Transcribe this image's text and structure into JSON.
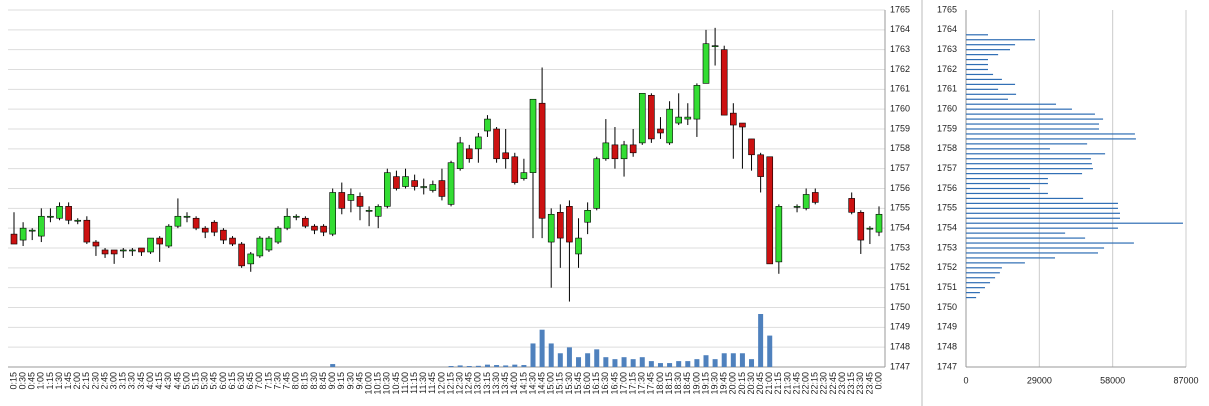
{
  "chart_data": [
    {
      "type": "candlestick",
      "x": [
        "0:15",
        "0:30",
        "0:45",
        "1:00",
        "1:15",
        "1:30",
        "1:45",
        "2:00",
        "2:15",
        "2:30",
        "2:45",
        "3:00",
        "3:15",
        "3:30",
        "3:45",
        "4:00",
        "4:15",
        "4:30",
        "4:45",
        "5:00",
        "5:15",
        "5:30",
        "5:45",
        "6:00",
        "6:15",
        "6:30",
        "6:45",
        "7:00",
        "7:15",
        "7:30",
        "7:45",
        "8:00",
        "8:15",
        "8:30",
        "8:45",
        "9:00",
        "9:15",
        "9:30",
        "9:45",
        "10:00",
        "10:15",
        "10:30",
        "10:45",
        "11:00",
        "11:15",
        "11:30",
        "11:45",
        "12:00",
        "12:15",
        "12:30",
        "12:45",
        "13:00",
        "13:15",
        "13:30",
        "13:45",
        "14:00",
        "14:15",
        "14:30",
        "14:45",
        "15:00",
        "15:15",
        "15:30",
        "15:45",
        "16:00",
        "16:15",
        "16:30",
        "16:45",
        "17:00",
        "17:15",
        "17:30",
        "17:45",
        "18:00",
        "18:15",
        "18:30",
        "18:45",
        "19:00",
        "19:15",
        "19:30",
        "19:45",
        "20:00",
        "20:15",
        "20:30",
        "20:45",
        "21:00",
        "21:15",
        "21:30",
        "21:45",
        "22:00",
        "22:15",
        "22:30",
        "22:45",
        "23:00",
        "23:15",
        "23:30",
        "23:45",
        "0:00"
      ],
      "open": [
        1753.7,
        1753.4,
        1753.9,
        1753.6,
        1754.6,
        1754.5,
        1755.1,
        1754.4,
        1754.4,
        1753.3,
        1752.9,
        1752.9,
        1752.9,
        1752.9,
        1753.0,
        1752.8,
        1753.5,
        1753.1,
        1754.1,
        1754.6,
        1754.5,
        1754.0,
        1754.3,
        1753.9,
        1753.5,
        1753.2,
        1752.2,
        1752.6,
        1752.9,
        1753.3,
        1754.0,
        1754.6,
        1754.5,
        1754.1,
        1754.1,
        1753.7,
        1755.8,
        1755.4,
        1755.6,
        1754.9,
        1754.6,
        1755.1,
        1756.6,
        1756.1,
        1756.4,
        1756.1,
        1755.9,
        1756.4,
        1755.2,
        1757.0,
        1758.0,
        1758.0,
        1758.9,
        1759.0,
        1757.8,
        1757.6,
        1756.5,
        1756.8,
        1760.3,
        1753.3,
        1754.8,
        1755.1,
        1752.7,
        1754.3,
        1755.0,
        1757.5,
        1758.2,
        1757.5,
        1758.2,
        1758.3,
        1760.7,
        1759.0,
        1758.3,
        1759.3,
        1759.5,
        1759.5,
        1761.3,
        1763.2,
        1763.0,
        1759.8,
        1759.3,
        1758.5,
        1757.7,
        1757.6,
        1752.3,
        null,
        1755.1,
        1755.0,
        1755.8,
        null,
        null,
        null,
        1755.5,
        1754.8,
        1754.0,
        1753.8
      ],
      "high": [
        1754.8,
        1754.3,
        1754.0,
        1755.0,
        1755.0,
        1755.3,
        1755.3,
        1754.5,
        1754.6,
        1753.4,
        1753.0,
        1752.9,
        1753.0,
        1753.0,
        1753.0,
        1753.5,
        1753.6,
        1754.2,
        1755.5,
        1754.8,
        1754.6,
        1754.1,
        1754.4,
        1754.0,
        1753.6,
        1753.3,
        1752.8,
        1753.6,
        1753.6,
        1754.1,
        1755.0,
        1754.7,
        1754.6,
        1754.2,
        1754.2,
        1756.0,
        1756.3,
        1756.0,
        1755.8,
        1755.1,
        1755.2,
        1757.0,
        1756.9,
        1757.0,
        1756.7,
        1756.5,
        1756.4,
        1757.0,
        1757.4,
        1758.6,
        1758.2,
        1758.8,
        1759.7,
        1759.1,
        1759.0,
        1757.8,
        1757.5,
        1760.5,
        1762.1,
        1755.0,
        1755.2,
        1755.4,
        1754.5,
        1755.3,
        1757.6,
        1759.5,
        1759.1,
        1758.4,
        1759.0,
        1760.8,
        1760.8,
        1759.6,
        1760.4,
        1760.8,
        1760.3,
        1761.3,
        1764.0,
        1764.1,
        1763.2,
        1760.3,
        1759.3,
        1758.5,
        1757.8,
        1757.6,
        1755.2,
        null,
        1755.2,
        1756.0,
        1756.0,
        null,
        null,
        null,
        1755.8,
        1754.9,
        1754.1,
        1755.1
      ],
      "low": [
        1753.2,
        1753.1,
        1753.4,
        1753.3,
        1754.3,
        1754.4,
        1754.2,
        1754.2,
        1753.2,
        1752.6,
        1752.5,
        1752.2,
        1752.5,
        1752.6,
        1752.6,
        1752.7,
        1752.3,
        1753.0,
        1754.0,
        1754.3,
        1753.9,
        1753.5,
        1753.6,
        1753.2,
        1753.1,
        1752.0,
        1751.8,
        1752.5,
        1752.8,
        1753.2,
        1753.9,
        1754.4,
        1754.0,
        1753.7,
        1753.6,
        1753.6,
        1754.7,
        1754.8,
        1754.4,
        1754.1,
        1754.0,
        1755.0,
        1755.9,
        1756.0,
        1755.9,
        1755.7,
        1755.8,
        1755.4,
        1755.1,
        1756.9,
        1757.3,
        1757.3,
        1758.6,
        1757.3,
        1757.0,
        1756.2,
        1756.4,
        1753.5,
        1753.5,
        1751.0,
        1752.0,
        1750.3,
        1752.0,
        1753.7,
        1754.9,
        1757.4,
        1757.0,
        1756.6,
        1757.6,
        1758.2,
        1758.3,
        1758.5,
        1758.2,
        1759.2,
        1759.2,
        1758.6,
        1761.3,
        1762.2,
        1759.7,
        1757.5,
        1757.0,
        1756.9,
        1755.8,
        1752.2,
        1751.7,
        null,
        1754.8,
        1754.9,
        1755.2,
        null,
        null,
        null,
        1754.7,
        1752.7,
        1753.2,
        1753.6
      ],
      "close": [
        1753.2,
        1754.0,
        1753.9,
        1754.6,
        1754.6,
        1755.1,
        1754.4,
        1754.4,
        1753.3,
        1753.1,
        1752.7,
        1752.7,
        1752.9,
        1752.9,
        1752.8,
        1753.5,
        1753.2,
        1754.1,
        1754.6,
        1754.6,
        1754.0,
        1753.8,
        1753.8,
        1753.4,
        1753.2,
        1752.1,
        1752.7,
        1753.5,
        1753.5,
        1754.0,
        1754.6,
        1754.6,
        1754.1,
        1753.9,
        1753.8,
        1755.8,
        1755.0,
        1755.7,
        1755.1,
        1754.9,
        1755.1,
        1756.8,
        1756.0,
        1756.6,
        1756.1,
        1756.1,
        1756.2,
        1755.6,
        1757.3,
        1758.3,
        1757.5,
        1758.6,
        1759.5,
        1757.5,
        1757.5,
        1756.3,
        1756.8,
        1760.5,
        1754.5,
        1754.7,
        1753.5,
        1753.3,
        1753.5,
        1754.9,
        1757.5,
        1758.3,
        1757.5,
        1758.2,
        1757.8,
        1760.8,
        1758.5,
        1758.8,
        1760.0,
        1759.6,
        1759.6,
        1761.2,
        1763.3,
        1763.2,
        1759.7,
        1759.2,
        1759.1,
        1757.7,
        1756.6,
        1752.2,
        1755.1,
        null,
        1755.1,
        1755.7,
        1755.3,
        null,
        null,
        null,
        1754.8,
        1753.4,
        1754.0,
        1754.7
      ],
      "volume": [
        0,
        0,
        0,
        0,
        0,
        0,
        0,
        0,
        0,
        0,
        0,
        0,
        0,
        0,
        0,
        0,
        0,
        0,
        0,
        0,
        0,
        0,
        0,
        0,
        0,
        0,
        0,
        0,
        0,
        0,
        0,
        0,
        0,
        0,
        0,
        150,
        0,
        0,
        0,
        0,
        0,
        0,
        0,
        0,
        0,
        0,
        0,
        0,
        50,
        80,
        50,
        60,
        120,
        100,
        80,
        120,
        100,
        1200,
        1900,
        1200,
        700,
        1000,
        500,
        700,
        900,
        500,
        400,
        500,
        400,
        500,
        300,
        200,
        200,
        300,
        300,
        400,
        600,
        400,
        700,
        700,
        700,
        400,
        2700,
        1600,
        0,
        null,
        0,
        0,
        0,
        null,
        null,
        null,
        0,
        0,
        0,
        0
      ],
      "up_color": "#33dd33",
      "down_color": "#cc1111",
      "volume_color": "#4f81bd",
      "ylim": [
        1747,
        1765
      ],
      "yticks": [
        1747,
        1748,
        1749,
        1750,
        1751,
        1752,
        1753,
        1754,
        1755,
        1756,
        1757,
        1758,
        1759,
        1760,
        1761,
        1762,
        1763,
        1764,
        1765
      ],
      "grid": true
    },
    {
      "type": "barh",
      "y": [
        1763.75,
        1763.5,
        1763.25,
        1763,
        1762.75,
        1762.5,
        1762.25,
        1762,
        1761.75,
        1761.5,
        1761.25,
        1761,
        1760.75,
        1760.5,
        1760.25,
        1760,
        1759.75,
        1759.5,
        1759.25,
        1759,
        1758.75,
        1758.5,
        1758.25,
        1758,
        1757.75,
        1757.5,
        1757.25,
        1757,
        1756.75,
        1756.5,
        1756.25,
        1756,
        1755.75,
        1755.5,
        1755.25,
        1755,
        1754.75,
        1754.5,
        1754.25,
        1754,
        1753.75,
        1753.5,
        1753.25,
        1753,
        1752.75,
        1752.5,
        1752.25,
        1752,
        1751.75,
        1751.5,
        1751.25,
        1751,
        1750.75,
        1750.5
      ],
      "values": [
        8700,
        27300,
        19400,
        17400,
        12700,
        8700,
        8700,
        8700,
        10700,
        14200,
        19400,
        12700,
        19800,
        16600,
        35600,
        41900,
        51000,
        54200,
        52600,
        52600,
        66800,
        67200,
        47900,
        33200,
        55000,
        49400,
        49800,
        50200,
        45900,
        32400,
        32400,
        25300,
        32400,
        46300,
        60100,
        60100,
        60900,
        60900,
        85800,
        60100,
        39200,
        47100,
        66400,
        54600,
        52200,
        35200,
        23300,
        14200,
        13400,
        11500,
        9500,
        7500,
        5500,
        4000
      ],
      "color": "#2e6db4",
      "xlim": [
        0,
        87000
      ],
      "xticks": [
        0,
        29000,
        58000,
        87000
      ],
      "ylim": [
        1747,
        1765
      ],
      "yticks": [
        1747,
        1748,
        1749,
        1750,
        1751,
        1752,
        1753,
        1754,
        1755,
        1756,
        1757,
        1758,
        1759,
        1760,
        1761,
        1762,
        1763,
        1764,
        1765
      ],
      "grid": true
    }
  ]
}
